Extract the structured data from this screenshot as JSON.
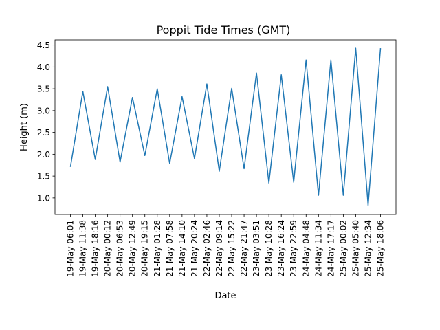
{
  "chart_data": {
    "type": "line",
    "title": "Poppit Tide Times (GMT)",
    "xlabel": "Date",
    "ylabel": "Height (m)",
    "ylim": [
      0.62,
      4.62
    ],
    "yticks": [
      "1.0",
      "1.5",
      "2.0",
      "2.5",
      "3.0",
      "3.5",
      "4.0",
      "4.5"
    ],
    "grid": false,
    "categories": [
      "19-May 06:01",
      "19-May 11:38",
      "19-May 18:16",
      "20-May 00:12",
      "20-May 06:53",
      "20-May 12:49",
      "20-May 19:15",
      "21-May 01:28",
      "21-May 07:58",
      "21-May 14:10",
      "21-May 20:24",
      "22-May 02:46",
      "22-May 09:14",
      "22-May 15:22",
      "22-May 21:47",
      "23-May 03:51",
      "23-May 10:28",
      "23-May 16:24",
      "23-May 22:59",
      "24-May 04:48",
      "24-May 11:34",
      "24-May 17:17",
      "25-May 00:02",
      "25-May 05:40",
      "25-May 12:34",
      "25-May 18:06"
    ],
    "series": [
      {
        "color": "#1f77b4",
        "values": [
          1.71,
          3.44,
          1.88,
          3.55,
          1.82,
          3.3,
          1.97,
          3.5,
          1.79,
          3.32,
          1.9,
          3.61,
          1.61,
          3.51,
          1.67,
          3.86,
          1.34,
          3.82,
          1.36,
          4.16,
          1.06,
          4.16,
          1.06,
          4.43,
          0.83,
          4.43
        ]
      }
    ]
  }
}
